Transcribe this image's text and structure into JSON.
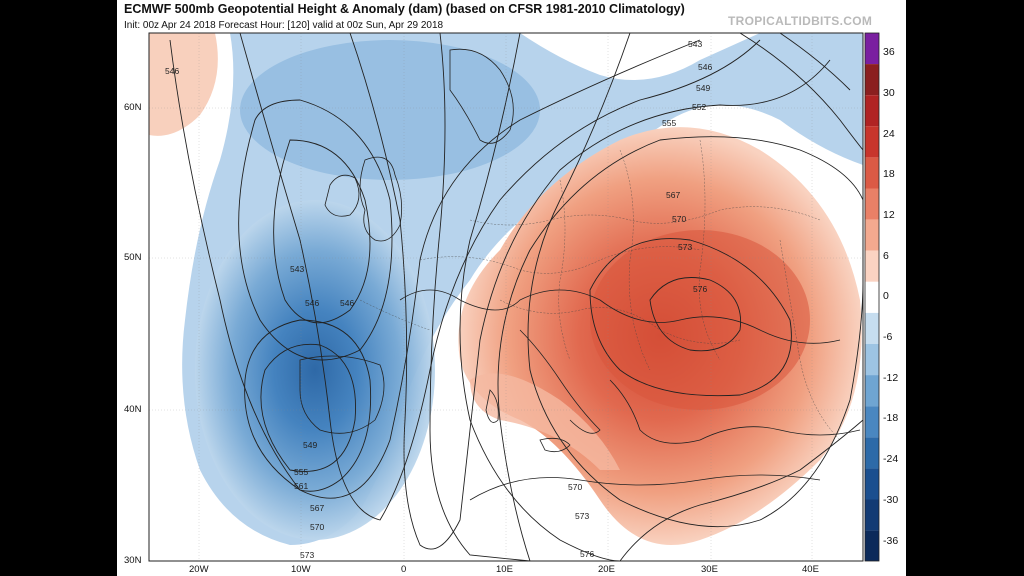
{
  "header": {
    "title": "ECMWF 500mb Geopotential Height & Anomaly (dam) (based on CFSR 1981-2010 Climatology)",
    "subtitle": "Init: 00z Apr 24 2018   Forecast Hour: [120]   valid at 00z Sun, Apr 29 2018",
    "brand": "TROPICALTIDBITS.COM"
  },
  "map": {
    "lat_ticks": [
      "60N",
      "50N",
      "40N",
      "30N"
    ],
    "lon_ticks": [
      "20W",
      "10W",
      "0",
      "10E",
      "20E",
      "30E",
      "40E"
    ],
    "contour_labels": [
      "546",
      "543",
      "546",
      "546",
      "549",
      "555",
      "561",
      "567",
      "570",
      "573",
      "570",
      "573",
      "576",
      "570",
      "573",
      "567",
      "555",
      "552",
      "549",
      "546",
      "543",
      "576"
    ],
    "colors": {
      "trough": "#3a79b8",
      "ridge": "#d9573d",
      "neutral": "#ffffff"
    }
  },
  "colorbar": {
    "labels": [
      "36",
      "30",
      "24",
      "18",
      "12",
      "6",
      "0",
      "-6",
      "-12",
      "-18",
      "-24",
      "-30",
      "-36"
    ],
    "colors": [
      "#7a1fa0",
      "#8b1f1f",
      "#b02323",
      "#c8352c",
      "#db5a45",
      "#e98067",
      "#f3a98f",
      "#fbd3c2",
      "#ffffff",
      "#c6ddef",
      "#9dc4e3",
      "#6fa5d2",
      "#4a87c0",
      "#2d6aa8",
      "#1b4f8f",
      "#133b74",
      "#0c2a5a"
    ]
  }
}
